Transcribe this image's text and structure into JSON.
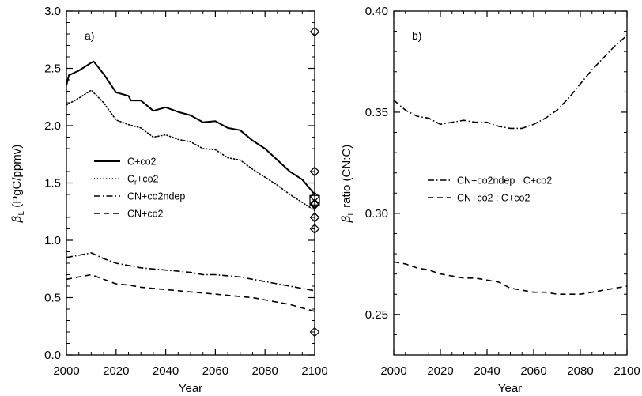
{
  "chart_data": [
    {
      "type": "line",
      "panel_label": "a)",
      "xlabel": "Year",
      "ylabel_symbol": "β",
      "ylabel_sub": "L",
      "ylabel_rest": " (PgC/ppmv)",
      "xlim": [
        2000,
        2100
      ],
      "ylim": [
        0,
        3.0
      ],
      "xticks": [
        2000,
        2020,
        2040,
        2060,
        2080,
        2100
      ],
      "yticks": [
        "0.0",
        "0.5",
        "1.0",
        "1.5",
        "2.0",
        "2.5",
        "3.0"
      ],
      "grid": false,
      "legend_position": "middle-left",
      "series": [
        {
          "name": "C+co2",
          "style": "solid",
          "x": [
            2000,
            2001,
            2005,
            2010,
            2011,
            2015,
            2020,
            2025,
            2026,
            2030,
            2035,
            2040,
            2045,
            2050,
            2055,
            2060,
            2065,
            2070,
            2075,
            2080,
            2085,
            2090,
            2095,
            2100
          ],
          "y": [
            2.35,
            2.44,
            2.48,
            2.55,
            2.56,
            2.45,
            2.29,
            2.26,
            2.22,
            2.22,
            2.13,
            2.16,
            2.12,
            2.09,
            2.03,
            2.04,
            1.98,
            1.96,
            1.87,
            1.8,
            1.7,
            1.6,
            1.53,
            1.4
          ]
        },
        {
          "name": "Cr+co2",
          "style": "dotted",
          "x": [
            2000,
            2005,
            2010,
            2015,
            2020,
            2025,
            2030,
            2035,
            2040,
            2045,
            2050,
            2055,
            2060,
            2065,
            2070,
            2075,
            2080,
            2085,
            2090,
            2095,
            2100
          ],
          "y": [
            2.18,
            2.24,
            2.31,
            2.2,
            2.05,
            2.01,
            1.98,
            1.9,
            1.92,
            1.88,
            1.86,
            1.8,
            1.79,
            1.72,
            1.7,
            1.62,
            1.55,
            1.48,
            1.4,
            1.33,
            1.26
          ]
        },
        {
          "name": "CN+co2ndep",
          "style": "dashdot",
          "x": [
            2000,
            2005,
            2010,
            2015,
            2020,
            2025,
            2030,
            2035,
            2040,
            2045,
            2050,
            2055,
            2060,
            2065,
            2070,
            2075,
            2080,
            2085,
            2090,
            2095,
            2100
          ],
          "y": [
            0.85,
            0.87,
            0.89,
            0.84,
            0.8,
            0.78,
            0.76,
            0.75,
            0.74,
            0.73,
            0.72,
            0.7,
            0.7,
            0.69,
            0.68,
            0.66,
            0.64,
            0.62,
            0.6,
            0.58,
            0.56
          ]
        },
        {
          "name": "CN+co2",
          "style": "dashed",
          "x": [
            2000,
            2005,
            2010,
            2015,
            2020,
            2025,
            2030,
            2035,
            2040,
            2045,
            2050,
            2055,
            2060,
            2065,
            2070,
            2075,
            2080,
            2085,
            2090,
            2095,
            2100
          ],
          "y": [
            0.66,
            0.68,
            0.7,
            0.66,
            0.62,
            0.61,
            0.59,
            0.58,
            0.57,
            0.56,
            0.55,
            0.54,
            0.53,
            0.52,
            0.51,
            0.5,
            0.48,
            0.46,
            0.44,
            0.41,
            0.38
          ]
        }
      ],
      "legend_labels": [
        {
          "main": "C+co2",
          "sub": ""
        },
        {
          "main": "C",
          "sub": "r",
          "rest": "+co2"
        },
        {
          "main": "CN+co2ndep",
          "sub": ""
        },
        {
          "main": "CN+co2",
          "sub": ""
        }
      ],
      "markers": {
        "diamonds": {
          "x": 2100,
          "y": [
            2.82,
            1.6,
            1.6,
            1.38,
            1.32,
            1.31,
            1.2,
            1.2,
            1.1,
            1.1,
            0.2
          ]
        },
        "squares": {
          "x": 2100,
          "y": [
            1.35
          ]
        }
      }
    },
    {
      "type": "line",
      "panel_label": "b)",
      "xlabel": "Year",
      "ylabel_symbol": "β",
      "ylabel_sub": "L",
      "ylabel_rest": " ratio (CN:C)",
      "xlim": [
        2000,
        2100
      ],
      "ylim": [
        0.23,
        0.4
      ],
      "xticks": [
        2000,
        2020,
        2040,
        2060,
        2080,
        2100
      ],
      "yticks": [
        "0.25",
        "0.30",
        "0.35",
        "0.40"
      ],
      "ytick_values": [
        0.25,
        0.3,
        0.35,
        0.4
      ],
      "grid": false,
      "legend_position": "middle",
      "series": [
        {
          "name": "CN+co2ndep : C+co2",
          "style": "dashdot",
          "x": [
            2000,
            2005,
            2010,
            2015,
            2020,
            2025,
            2030,
            2035,
            2040,
            2045,
            2050,
            2055,
            2060,
            2065,
            2070,
            2075,
            2080,
            2085,
            2090,
            2095,
            2100
          ],
          "y": [
            0.356,
            0.351,
            0.348,
            0.347,
            0.344,
            0.345,
            0.346,
            0.345,
            0.345,
            0.343,
            0.342,
            0.342,
            0.344,
            0.347,
            0.351,
            0.357,
            0.364,
            0.371,
            0.377,
            0.383,
            0.388
          ]
        },
        {
          "name": "CN+co2 : C+co2",
          "style": "dashed",
          "x": [
            2000,
            2005,
            2010,
            2015,
            2020,
            2025,
            2030,
            2035,
            2040,
            2045,
            2050,
            2055,
            2060,
            2065,
            2070,
            2075,
            2080,
            2085,
            2090,
            2095,
            2100
          ],
          "y": [
            0.276,
            0.275,
            0.273,
            0.272,
            0.27,
            0.269,
            0.268,
            0.268,
            0.267,
            0.266,
            0.263,
            0.262,
            0.261,
            0.261,
            0.26,
            0.26,
            0.26,
            0.261,
            0.262,
            0.263,
            0.264
          ]
        }
      ]
    }
  ]
}
